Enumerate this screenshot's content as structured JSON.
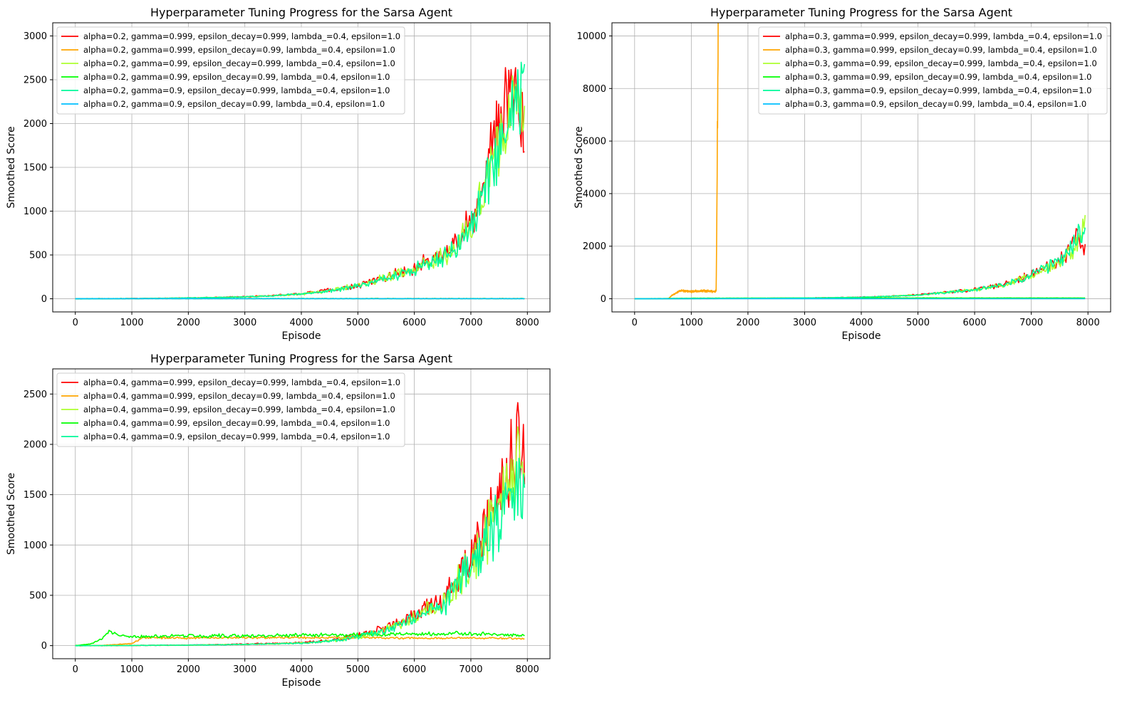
{
  "colors": {
    "red": "#ff0000",
    "orange": "#ffa500",
    "yellowgreen": "#adff2f",
    "green": "#00ff00",
    "springgreen": "#00fa9a",
    "deepskyblue": "#00bfff",
    "grid": "#b0b0b0"
  },
  "chart_data": [
    {
      "type": "line",
      "title": "Hyperparameter Tuning Progress for the Sarsa Agent",
      "xlabel": "Episode",
      "ylabel": "Smoothed Score",
      "xlim": [
        -400,
        8400
      ],
      "ylim": [
        -150,
        3150
      ],
      "xticks": [
        0,
        1000,
        2000,
        3000,
        4000,
        5000,
        6000,
        7000,
        8000
      ],
      "yticks": [
        0,
        500,
        1000,
        1500,
        2000,
        2500,
        3000
      ],
      "grid": true,
      "legend_position": "top-left",
      "x_points": [
        0,
        500,
        1000,
        1500,
        2000,
        2500,
        3000,
        3500,
        4000,
        4500,
        5000,
        5500,
        6000,
        6500,
        6800,
        7000,
        7200,
        7400,
        7600,
        7800,
        7950
      ],
      "series": [
        {
          "name": "alpha=0.2, gamma=0.999, epsilon_decay=0.999, lambda_=0.4, epsilon=1.0",
          "color": "#ff0000",
          "noise": 0.18,
          "values": [
            0,
            0,
            2,
            5,
            10,
            15,
            25,
            35,
            60,
            100,
            150,
            250,
            350,
            500,
            700,
            900,
            1300,
            1800,
            2400,
            2500,
            1800
          ]
        },
        {
          "name": "alpha=0.2, gamma=0.999, epsilon_decay=0.99, lambda_=0.4, epsilon=1.0",
          "color": "#ffa500",
          "noise": 0.05,
          "values": [
            0,
            2,
            2,
            2,
            2,
            2,
            2,
            2,
            2,
            2,
            2,
            2,
            2,
            2,
            2,
            2,
            2,
            2,
            2,
            2,
            2
          ]
        },
        {
          "name": "alpha=0.2, gamma=0.99, epsilon_decay=0.999, lambda_=0.4, epsilon=1.0",
          "color": "#adff2f",
          "noise": 0.18,
          "values": [
            0,
            0,
            2,
            5,
            10,
            15,
            22,
            35,
            55,
            95,
            150,
            240,
            340,
            480,
            650,
            850,
            1200,
            1600,
            2000,
            2300,
            2100
          ]
        },
        {
          "name": "alpha=0.2, gamma=0.99, epsilon_decay=0.99, lambda_=0.4, epsilon=1.0",
          "color": "#00ff00",
          "noise": 0.05,
          "values": [
            0,
            2,
            2,
            2,
            2,
            2,
            2,
            2,
            2,
            2,
            2,
            2,
            2,
            2,
            2,
            2,
            2,
            2,
            2,
            2,
            2
          ]
        },
        {
          "name": "alpha=0.2, gamma=0.9, epsilon_decay=0.999, lambda_=0.4, epsilon=1.0",
          "color": "#00fa9a",
          "noise": 0.18,
          "values": [
            0,
            0,
            2,
            5,
            10,
            14,
            22,
            33,
            55,
            90,
            145,
            235,
            330,
            470,
            640,
            830,
            1150,
            1550,
            1950,
            2250,
            2300
          ]
        },
        {
          "name": "alpha=0.2, gamma=0.9, epsilon_decay=0.99, lambda_=0.4, epsilon=1.0",
          "color": "#00bfff",
          "noise": 0.0,
          "values": [
            1,
            1,
            1,
            1,
            1,
            1,
            1,
            1,
            1,
            1,
            1,
            1,
            1,
            1,
            1,
            1,
            1,
            1,
            1,
            1,
            1
          ]
        }
      ]
    },
    {
      "type": "line",
      "title": "Hyperparameter Tuning Progress for the Sarsa Agent",
      "xlabel": "Episode",
      "ylabel": "Smoothed Score",
      "xlim": [
        -400,
        8400
      ],
      "ylim": [
        -500,
        10500
      ],
      "xticks": [
        0,
        1000,
        2000,
        3000,
        4000,
        5000,
        6000,
        7000,
        8000
      ],
      "yticks": [
        0,
        2000,
        4000,
        6000,
        8000,
        10000
      ],
      "grid": true,
      "legend_position": "top-right",
      "series": [
        {
          "name": "alpha=0.3, gamma=0.999, epsilon_decay=0.999, lambda_=0.4, epsilon=1.0",
          "color": "#ff0000",
          "noise": 0.15,
          "x": [
            0,
            500,
            1000,
            2000,
            3000,
            4000,
            4500,
            5000,
            5500,
            6000,
            6500,
            7000,
            7500,
            7800,
            7950
          ],
          "values": [
            0,
            0,
            5,
            15,
            30,
            60,
            100,
            150,
            250,
            350,
            550,
            900,
            1400,
            2300,
            2000
          ]
        },
        {
          "name": "alpha=0.3, gamma=0.999, epsilon_decay=0.99, lambda_=0.4, epsilon=1.0",
          "color": "#ffa500",
          "noise": 0.12,
          "x": [
            0,
            600,
            650,
            800,
            1000,
            1200,
            1400,
            1440,
            1475
          ],
          "values": [
            0,
            0,
            120,
            300,
            280,
            300,
            280,
            300,
            10000
          ]
        },
        {
          "name": "alpha=0.3, gamma=0.99, epsilon_decay=0.999, lambda_=0.4, epsilon=1.0",
          "color": "#adff2f",
          "noise": 0.15,
          "x": [
            0,
            500,
            1000,
            2000,
            3000,
            4000,
            4500,
            5000,
            5500,
            6000,
            6500,
            7000,
            7500,
            7800,
            7950
          ],
          "values": [
            0,
            0,
            5,
            15,
            30,
            55,
            95,
            145,
            240,
            340,
            530,
            880,
            1350,
            2000,
            2800
          ]
        },
        {
          "name": "alpha=0.3, gamma=0.99, epsilon_decay=0.99, lambda_=0.4, epsilon=1.0",
          "color": "#00ff00",
          "noise": 0.1,
          "x": [
            0,
            1000,
            2000,
            3000,
            4000,
            5000,
            6000,
            7000,
            7950
          ],
          "values": [
            0,
            20,
            25,
            30,
            30,
            30,
            30,
            30,
            30
          ]
        },
        {
          "name": "alpha=0.3, gamma=0.9, epsilon_decay=0.999, lambda_=0.4, epsilon=1.0",
          "color": "#00fa9a",
          "noise": 0.15,
          "x": [
            0,
            500,
            1000,
            2000,
            3000,
            4000,
            4500,
            5000,
            5500,
            6000,
            6500,
            7000,
            7500,
            7800,
            7950
          ],
          "values": [
            0,
            0,
            5,
            15,
            30,
            55,
            95,
            145,
            240,
            340,
            540,
            900,
            1400,
            2300,
            2900
          ]
        },
        {
          "name": "alpha=0.3, gamma=0.9, epsilon_decay=0.99, lambda_=0.4, epsilon=1.0",
          "color": "#00bfff",
          "noise": 0.0,
          "x": [
            0,
            7950
          ],
          "values": [
            2,
            2
          ]
        }
      ]
    },
    {
      "type": "line",
      "title": "Hyperparameter Tuning Progress for the Sarsa Agent",
      "xlabel": "Episode",
      "ylabel": "Smoothed Score",
      "xlim": [
        -400,
        8400
      ],
      "ylim": [
        -130,
        2750
      ],
      "xticks": [
        0,
        1000,
        2000,
        3000,
        4000,
        5000,
        6000,
        7000,
        8000
      ],
      "yticks": [
        0,
        500,
        1000,
        1500,
        2000,
        2500
      ],
      "grid": true,
      "legend_position": "top-left",
      "series": [
        {
          "name": "alpha=0.4, gamma=0.999, epsilon_decay=0.999, lambda_=0.4, epsilon=1.0",
          "color": "#ff0000",
          "noise": 0.22,
          "x": [
            0,
            500,
            1000,
            2000,
            3000,
            4000,
            4500,
            5000,
            5500,
            6000,
            6500,
            6800,
            7000,
            7200,
            7400,
            7600,
            7800,
            7950
          ],
          "values": [
            0,
            0,
            2,
            5,
            15,
            30,
            50,
            100,
            180,
            300,
            450,
            700,
            900,
            1100,
            1300,
            1600,
            2000,
            2100
          ]
        },
        {
          "name": "alpha=0.4, gamma=0.999, epsilon_decay=0.99, lambda_=0.4, epsilon=1.0",
          "color": "#ffa500",
          "noise": 0.1,
          "x": [
            0,
            400,
            1000,
            1200,
            2000,
            3000,
            4000,
            5000,
            6000,
            7000,
            7950
          ],
          "values": [
            0,
            0,
            20,
            80,
            75,
            80,
            80,
            80,
            75,
            75,
            70
          ]
        },
        {
          "name": "alpha=0.4, gamma=0.99, epsilon_decay=0.999, lambda_=0.4, epsilon=1.0",
          "color": "#adff2f",
          "noise": 0.22,
          "x": [
            0,
            500,
            1000,
            2000,
            3000,
            4000,
            4500,
            5000,
            5500,
            6000,
            6500,
            6800,
            7000,
            7200,
            7400,
            7600,
            7800,
            7950
          ],
          "values": [
            0,
            0,
            2,
            5,
            12,
            25,
            45,
            90,
            160,
            280,
            420,
            650,
            850,
            1050,
            1250,
            1500,
            1700,
            1900
          ]
        },
        {
          "name": "alpha=0.4, gamma=0.99, epsilon_decay=0.99, lambda_=0.4, epsilon=1.0",
          "color": "#00ff00",
          "noise": 0.14,
          "x": [
            0,
            300,
            500,
            600,
            800,
            1000,
            2000,
            3000,
            4000,
            5000,
            6000,
            7000,
            7950
          ],
          "values": [
            0,
            20,
            80,
            140,
            95,
            90,
            100,
            95,
            105,
            110,
            115,
            120,
            100
          ]
        },
        {
          "name": "alpha=0.4, gamma=0.9, epsilon_decay=0.999, lambda_=0.4, epsilon=1.0",
          "color": "#00fa9a",
          "noise": 0.22,
          "x": [
            0,
            500,
            1000,
            2000,
            3000,
            4000,
            4500,
            5000,
            5500,
            6000,
            6500,
            6800,
            7000,
            7200,
            7400,
            7600,
            7800,
            7950
          ],
          "values": [
            0,
            0,
            2,
            5,
            12,
            25,
            45,
            85,
            150,
            260,
            400,
            620,
            800,
            1000,
            1200,
            1400,
            1500,
            1500
          ]
        }
      ]
    }
  ]
}
